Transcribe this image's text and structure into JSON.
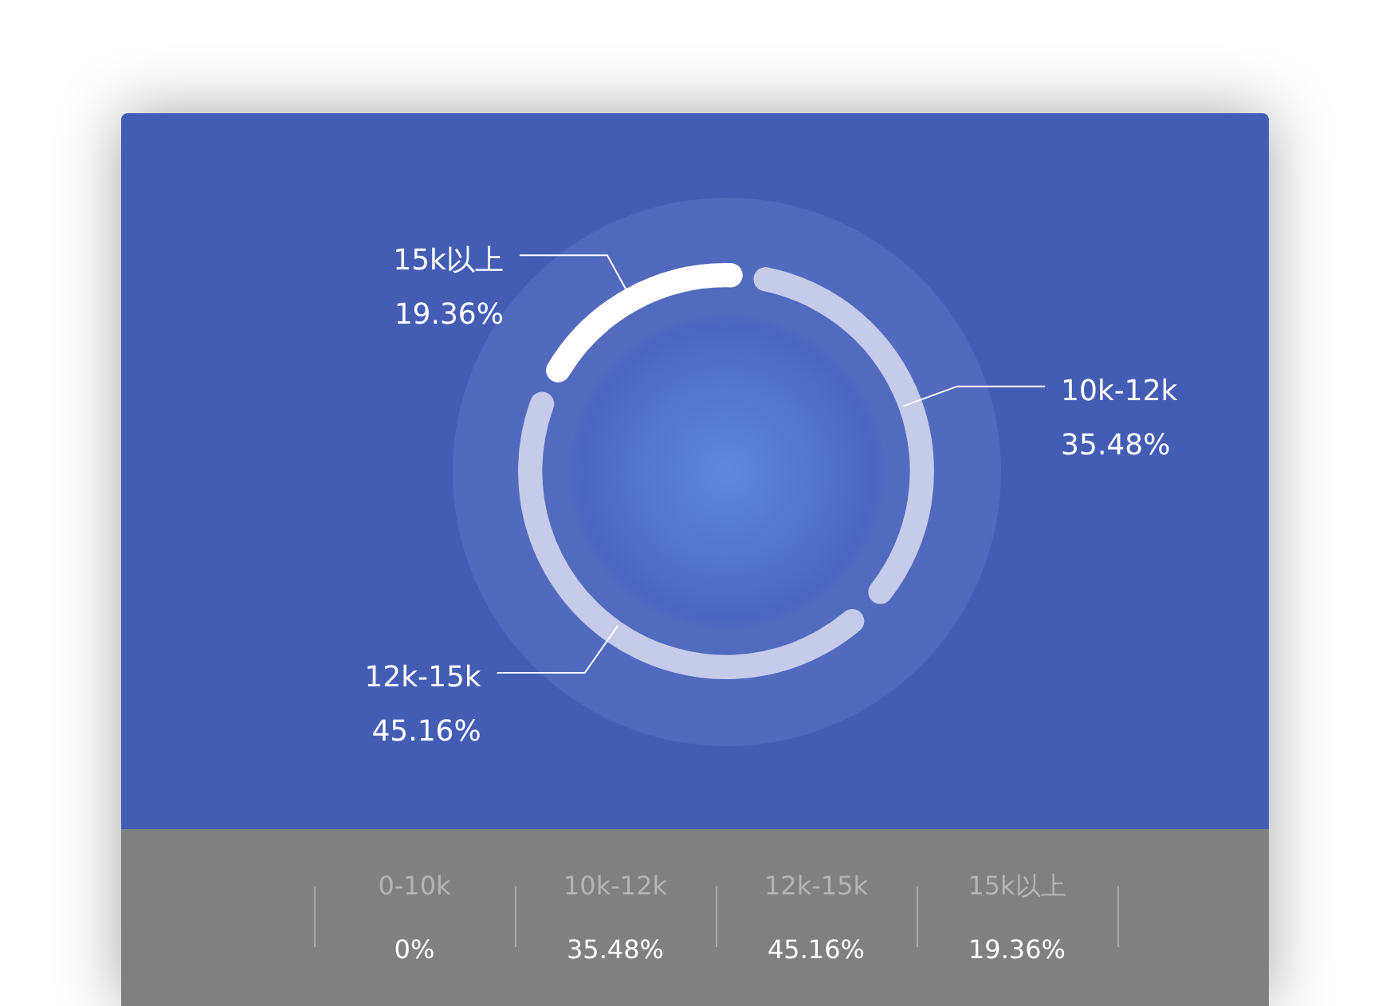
{
  "chart_data": {
    "type": "donut",
    "categories": [
      "0-10k",
      "10k-12k",
      "12k-15k",
      "15k以上"
    ],
    "values": [
      0,
      35.48,
      45.16,
      19.36
    ],
    "colors": [
      "#c5cbe9",
      "#c5cbe9",
      "#c5cbe9",
      "#ffffff"
    ],
    "value_labels": [
      "0%",
      "35.48%",
      "45.16%",
      "19.36%"
    ],
    "legend": false
  }
}
